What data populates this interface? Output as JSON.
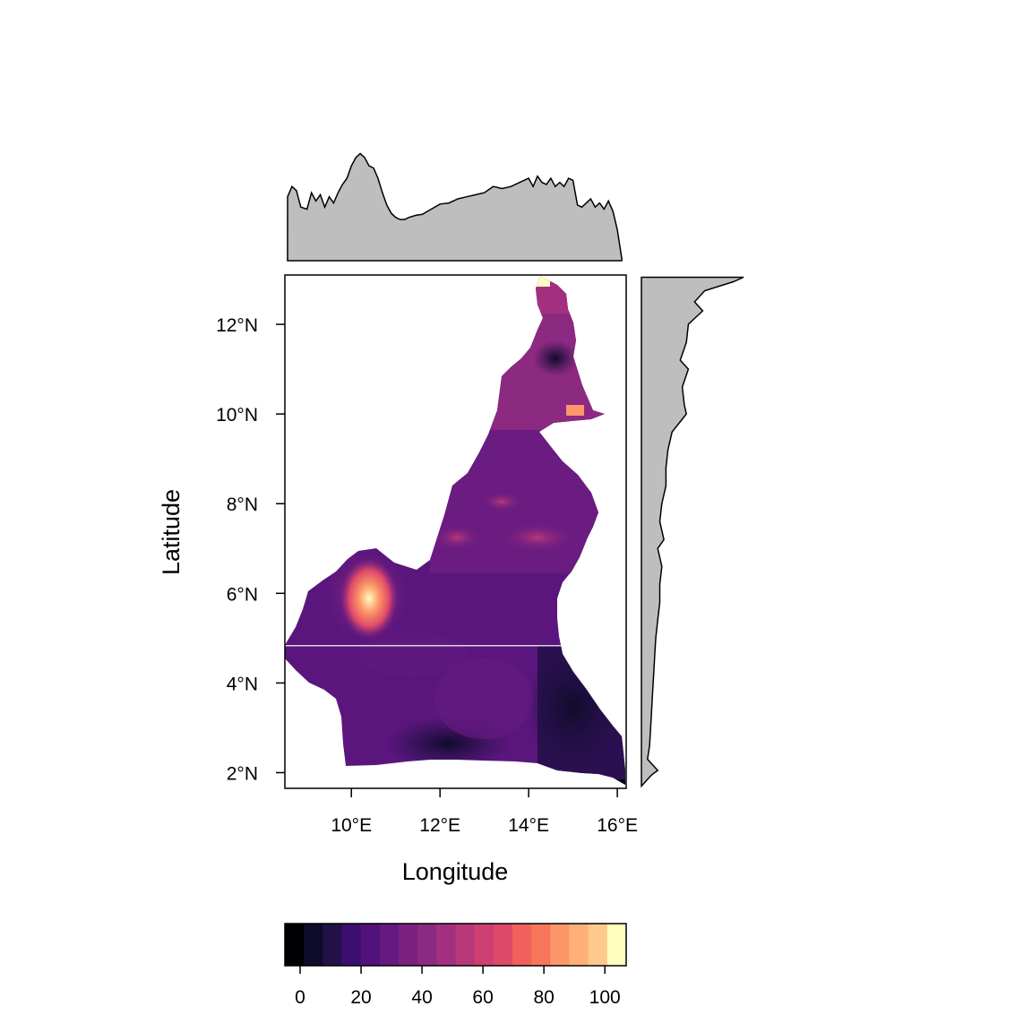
{
  "chart_data": {
    "type": "heatmap",
    "subtype": "raster-map-with-marginal-profiles",
    "xlabel": "Longitude",
    "ylabel": "Latitude",
    "xlim": [
      8.5,
      16.2
    ],
    "ylim": [
      1.65,
      13.1
    ],
    "x_ticks": [
      {
        "value": 10,
        "label": "10°E"
      },
      {
        "value": 12,
        "label": "12°E"
      },
      {
        "value": 14,
        "label": "14°E"
      },
      {
        "value": 16,
        "label": "16°E"
      }
    ],
    "y_ticks": [
      {
        "value": 2,
        "label": "2°N"
      },
      {
        "value": 4,
        "label": "4°N"
      },
      {
        "value": 6,
        "label": "6°N"
      },
      {
        "value": 8,
        "label": "8°N"
      },
      {
        "value": 10,
        "label": "10°N"
      },
      {
        "value": 12,
        "label": "12°N"
      }
    ],
    "colorbar": {
      "min": -5,
      "max": 107,
      "ticks": [
        {
          "value": 0,
          "label": "0"
        },
        {
          "value": 20,
          "label": "20"
        },
        {
          "value": 40,
          "label": "40"
        },
        {
          "value": 60,
          "label": "60"
        },
        {
          "value": 80,
          "label": "80"
        },
        {
          "value": 100,
          "label": "100"
        }
      ],
      "colors": [
        "#000004",
        "#0f0b2a",
        "#211147",
        "#3b0f70",
        "#51127c",
        "#641a80",
        "#7a2180",
        "#8c2981",
        "#a3307e",
        "#b73779",
        "#cd4071",
        "#de4968",
        "#f1605d",
        "#f8765c",
        "#fd9668",
        "#feb078",
        "#fec98d",
        "#fcfdbf"
      ]
    },
    "top_profile": {
      "description": "mean value by longitude",
      "x": [
        8.56,
        8.66,
        8.76,
        8.86,
        9.0,
        9.1,
        9.2,
        9.3,
        9.4,
        9.5,
        9.6,
        9.7,
        9.8,
        9.9,
        10.0,
        10.1,
        10.2,
        10.3,
        10.4,
        10.5,
        10.6,
        10.7,
        10.8,
        10.9,
        11.0,
        11.1,
        11.2,
        11.3,
        11.45,
        11.6,
        11.8,
        12.0,
        12.2,
        12.4,
        12.6,
        12.8,
        13.0,
        13.2,
        13.4,
        13.6,
        13.8,
        14.0,
        14.1,
        14.2,
        14.3,
        14.4,
        14.5,
        14.6,
        14.7,
        14.8,
        14.9,
        15.0,
        15.1,
        15.2,
        15.3,
        15.4,
        15.5,
        15.6,
        15.7,
        15.8,
        15.9,
        16.0,
        16.1
      ],
      "y": [
        0.62,
        0.72,
        0.68,
        0.52,
        0.5,
        0.66,
        0.58,
        0.64,
        0.52,
        0.62,
        0.56,
        0.66,
        0.74,
        0.8,
        0.92,
        1.0,
        1.04,
        1.0,
        0.92,
        0.9,
        0.8,
        0.66,
        0.54,
        0.46,
        0.42,
        0.4,
        0.4,
        0.42,
        0.44,
        0.45,
        0.5,
        0.55,
        0.56,
        0.6,
        0.62,
        0.64,
        0.66,
        0.72,
        0.7,
        0.72,
        0.76,
        0.8,
        0.72,
        0.82,
        0.76,
        0.74,
        0.8,
        0.72,
        0.76,
        0.72,
        0.8,
        0.78,
        0.54,
        0.52,
        0.56,
        0.6,
        0.52,
        0.56,
        0.5,
        0.58,
        0.48,
        0.3,
        0.02
      ]
    },
    "right_profile": {
      "description": "mean value by latitude",
      "lat": [
        13.05,
        12.95,
        12.75,
        12.5,
        12.3,
        12.0,
        11.6,
        11.2,
        11.0,
        10.6,
        10.2,
        10.0,
        9.6,
        9.2,
        8.8,
        8.4,
        8.0,
        7.6,
        7.2,
        7.0,
        6.6,
        6.2,
        5.8,
        5.4,
        5.0,
        4.6,
        4.2,
        3.8,
        3.4,
        3.0,
        2.6,
        2.3,
        2.05,
        1.95,
        1.7
      ],
      "value": [
        1.0,
        0.9,
        0.62,
        0.52,
        0.6,
        0.46,
        0.44,
        0.38,
        0.46,
        0.4,
        0.42,
        0.44,
        0.3,
        0.26,
        0.24,
        0.24,
        0.2,
        0.18,
        0.22,
        0.16,
        0.2,
        0.18,
        0.18,
        0.16,
        0.14,
        0.13,
        0.12,
        0.11,
        0.1,
        0.09,
        0.08,
        0.06,
        0.16,
        0.1,
        0.0
      ]
    }
  }
}
